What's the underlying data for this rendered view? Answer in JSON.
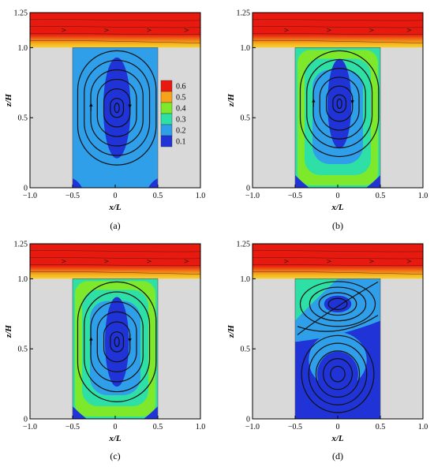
{
  "chart_data": [
    {
      "type": "heatmap",
      "panel": "(a)",
      "xlabel": "x/L",
      "ylabel": "z/H",
      "xlim": [
        -1.0,
        1.0
      ],
      "ylim": [
        0,
        1.25
      ],
      "xticks": [
        "−1.0",
        "−0.5",
        "0",
        "0.5",
        "1.0"
      ],
      "yticks": [
        "0",
        "0.5",
        "1.0",
        "1.25"
      ],
      "vortices": [
        {
          "x": 0.02,
          "z": 0.57
        }
      ],
      "legend": {
        "placement": "inside-right",
        "levels": [
          "0.6",
          "0.5",
          "0.4",
          "0.3",
          "0.2",
          "0.1"
        ]
      }
    },
    {
      "type": "heatmap",
      "panel": "(b)",
      "xlabel": "x/L",
      "ylabel": "z/H",
      "xlim": [
        -1.0,
        1.0
      ],
      "ylim": [
        0,
        1.25
      ],
      "xticks": [
        "−1.0",
        "−0.5",
        "0",
        "0.5",
        "1.0"
      ],
      "yticks": [
        "0",
        "0.5",
        "1.0",
        "1.25"
      ],
      "vortices": [
        {
          "x": 0.02,
          "z": 0.6
        }
      ]
    },
    {
      "type": "heatmap",
      "panel": "(c)",
      "xlabel": "x/L",
      "ylabel": "z/H",
      "xlim": [
        -1.0,
        1.0
      ],
      "ylim": [
        0,
        1.25
      ],
      "xticks": [
        "−1.0",
        "−0.5",
        "0",
        "0.5",
        "1.0"
      ],
      "yticks": [
        "0",
        "0.5",
        "1.0",
        "1.25"
      ],
      "vortices": [
        {
          "x": 0.02,
          "z": 0.55
        }
      ]
    },
    {
      "type": "heatmap",
      "panel": "(d)",
      "xlabel": "x/L",
      "ylabel": "z/H",
      "xlim": [
        -1.0,
        1.0
      ],
      "ylim": [
        0,
        1.25
      ],
      "xticks": [
        "−1.0",
        "−0.5",
        "0",
        "0.5",
        "1.0"
      ],
      "yticks": [
        "0",
        "0.5",
        "1.0",
        "1.25"
      ],
      "vortices": [
        {
          "x": 0.0,
          "z": 0.82
        },
        {
          "x": 0.0,
          "z": 0.32
        }
      ]
    }
  ],
  "colors": {
    "level_0.6": "#e8190f",
    "level_0.5": "#f7a21b",
    "level_0.4": "#7ee82a",
    "level_0.3": "#2fe0a6",
    "level_0.2": "#2f9fe9",
    "level_0.1": "#1f33d6",
    "wall": "#d9d9d9"
  }
}
